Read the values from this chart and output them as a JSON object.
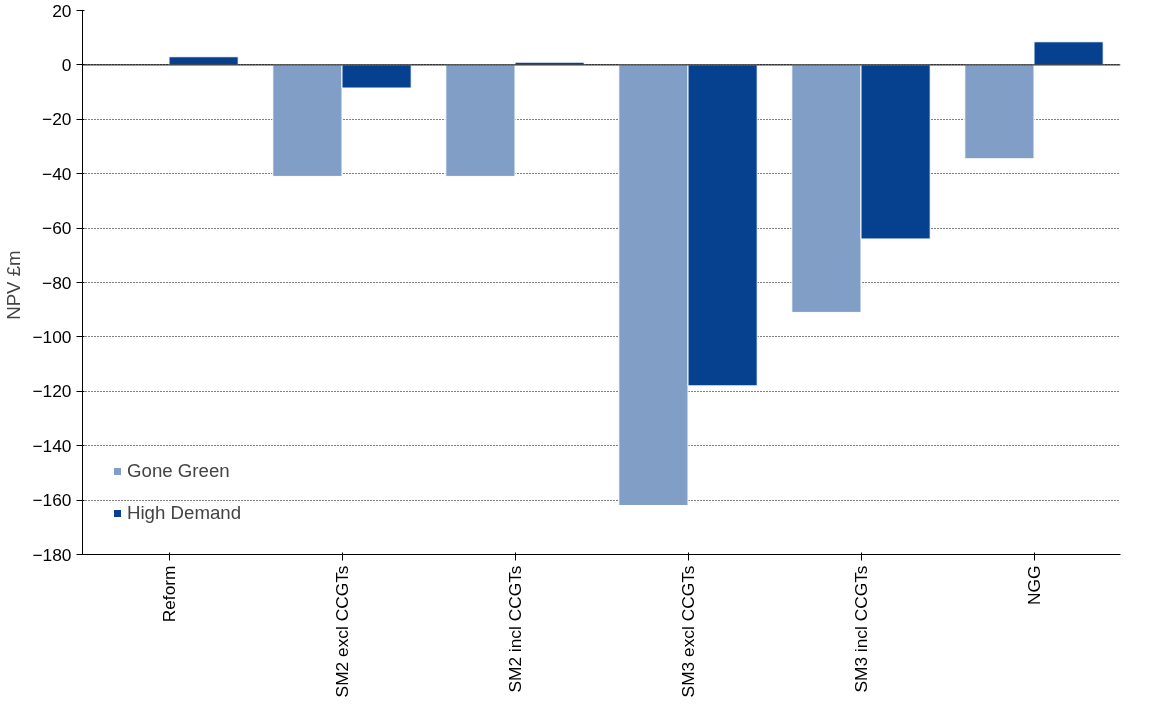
{
  "chart_data": {
    "type": "bar",
    "ylabel": "NPV  £m",
    "categories": [
      "Reform",
      "SM2 excl CCGTs",
      "SM2 incl CCGTs",
      "SM3 excl CCGTs",
      "SM3 incl CCGTs",
      "NGG"
    ],
    "series": [
      {
        "name": "Gone Green",
        "color": "#819fc6",
        "values": [
          null,
          -41,
          -41,
          -162,
          -91,
          -34.5
        ]
      },
      {
        "name": "High Demand",
        "color": "#05418f",
        "values": [
          3,
          -8.5,
          1,
          -118,
          -64,
          8.5
        ]
      }
    ],
    "ylim": [
      -180,
      20
    ],
    "yticks": [
      -180,
      -160,
      -140,
      -120,
      -100,
      -80,
      -60,
      -40,
      -20,
      0,
      20
    ],
    "grid": "y",
    "legend": "bottom left"
  }
}
